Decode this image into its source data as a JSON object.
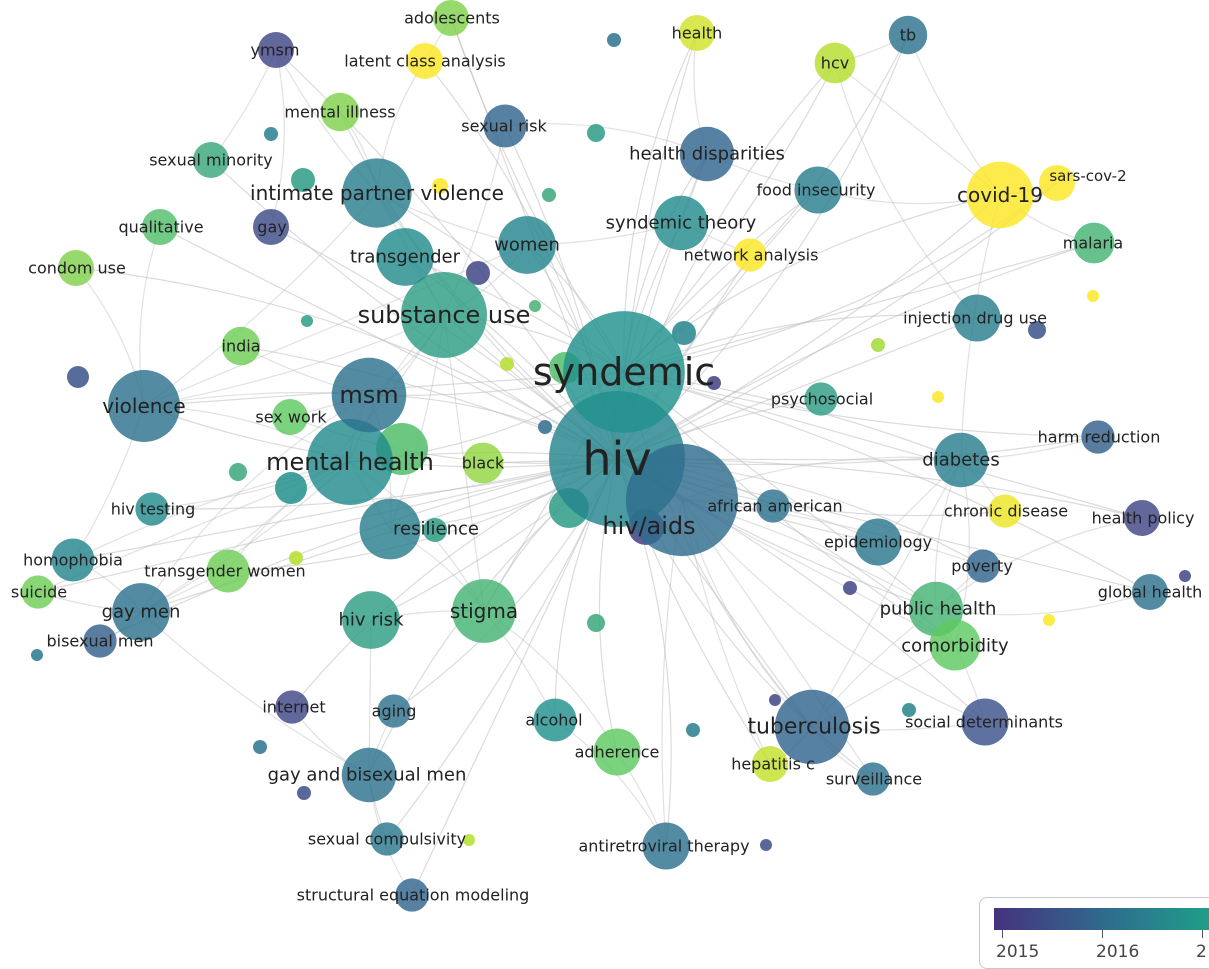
{
  "network": {
    "nodes": [
      {
        "id": "hiv",
        "label": "hiv",
        "year": 2016.3,
        "weight": 100
      },
      {
        "id": "syndemic",
        "label": "syndemic",
        "year": 2016.5,
        "weight": 80
      },
      {
        "id": "hiv/aids",
        "label": "hiv/aids",
        "year": 2015.9,
        "weight": 68
      },
      {
        "id": "substance use",
        "label": "substance use",
        "year": 2016.6,
        "weight": 40
      },
      {
        "id": "mental health",
        "label": "mental health",
        "year": 2016.4,
        "weight": 40
      },
      {
        "id": "msm",
        "label": "msm",
        "year": 2016.0,
        "weight": 30
      },
      {
        "id": "violence",
        "label": "violence",
        "year": 2016.0,
        "weight": 28
      },
      {
        "id": "intimate partner violence",
        "label": "intimate partner violence",
        "year": 2016.2,
        "weight": 26
      },
      {
        "id": "tuberculosis",
        "label": "tuberculosis",
        "year": 2015.8,
        "weight": 30
      },
      {
        "id": "covid-19",
        "label": "covid-19",
        "year": 2018.0,
        "weight": 24
      },
      {
        "id": "stigma",
        "label": "stigma",
        "year": 2016.8,
        "weight": 22
      },
      {
        "id": "resilience",
        "label": "resilience",
        "year": 2016.2,
        "weight": 20
      },
      {
        "id": "hiv risk",
        "label": "hiv risk",
        "year": 2016.6,
        "weight": 18
      },
      {
        "id": "gay men",
        "label": "gay men",
        "year": 2016.0,
        "weight": 18
      },
      {
        "id": "transgender",
        "label": "transgender",
        "year": 2016.4,
        "weight": 18
      },
      {
        "id": "women",
        "label": "women",
        "year": 2016.3,
        "weight": 18
      },
      {
        "id": "syndemic theory",
        "label": "syndemic theory",
        "year": 2016.4,
        "weight": 16
      },
      {
        "id": "health disparities",
        "label": "health disparities",
        "year": 2015.8,
        "weight": 16
      },
      {
        "id": "diabetes",
        "label": "diabetes",
        "year": 2016.2,
        "weight": 16
      },
      {
        "id": "public health",
        "label": "public health",
        "year": 2016.8,
        "weight": 16
      },
      {
        "id": "gay and bisexual men",
        "label": "gay and bisexual men",
        "year": 2016.0,
        "weight": 16
      },
      {
        "id": "comorbidity",
        "label": "comorbidity",
        "year": 2017.0,
        "weight": 14
      },
      {
        "id": "food insecurity",
        "label": "food insecurity",
        "year": 2016.2,
        "weight": 12
      },
      {
        "id": "injection drug use",
        "label": "injection drug use",
        "year": 2016.2,
        "weight": 12
      },
      {
        "id": "epidemiology",
        "label": "epidemiology",
        "year": 2016.1,
        "weight": 12
      },
      {
        "id": "adherence",
        "label": "adherence",
        "year": 2017.0,
        "weight": 12
      },
      {
        "id": "antiretroviral therapy",
        "label": "antiretroviral therapy",
        "year": 2016.0,
        "weight": 12
      },
      {
        "id": "social determinants",
        "label": "social determinants",
        "year": 2015.5,
        "weight": 12
      },
      {
        "id": "homophobia",
        "label": "homophobia",
        "year": 2016.3,
        "weight": 10
      },
      {
        "id": "sexual risk",
        "label": "sexual risk",
        "year": 2015.8,
        "weight": 10
      },
      {
        "id": "alcohol",
        "label": "alcohol",
        "year": 2016.5,
        "weight": 10
      },
      {
        "id": "transgender women",
        "label": "transgender women",
        "year": 2017.1,
        "weight": 10
      },
      {
        "id": "malaria",
        "label": "malaria",
        "year": 2016.8,
        "weight": 9
      },
      {
        "id": "black",
        "label": "black",
        "year": 2017.3,
        "weight": 9
      },
      {
        "id": "india",
        "label": "india",
        "year": 2017.1,
        "weight": 8
      },
      {
        "id": "tb",
        "label": "tb",
        "year": 2016.0,
        "weight": 8
      },
      {
        "id": "hcv",
        "label": "hcv",
        "year": 2017.5,
        "weight": 9
      },
      {
        "id": "health",
        "label": "health",
        "year": 2017.7,
        "weight": 7
      },
      {
        "id": "adolescents",
        "label": "adolescents",
        "year": 2017.2,
        "weight": 7
      },
      {
        "id": "ymsm",
        "label": "ymsm",
        "year": 2015.3,
        "weight": 7
      },
      {
        "id": "latent class analysis",
        "label": "latent class analysis",
        "year": 2018.0,
        "weight": 7
      },
      {
        "id": "mental illness",
        "label": "mental illness",
        "year": 2017.2,
        "weight": 8
      },
      {
        "id": "sexual minority",
        "label": "sexual minority",
        "year": 2016.7,
        "weight": 7
      },
      {
        "id": "qualitative",
        "label": "qualitative",
        "year": 2016.9,
        "weight": 7
      },
      {
        "id": "gay",
        "label": "gay",
        "year": 2015.4,
        "weight": 7
      },
      {
        "id": "condom use",
        "label": "condom use",
        "year": 2017.2,
        "weight": 7
      },
      {
        "id": "sex work",
        "label": "sex work",
        "year": 2017.0,
        "weight": 7
      },
      {
        "id": "hiv testing",
        "label": "hiv testing",
        "year": 2016.4,
        "weight": 6
      },
      {
        "id": "suicide",
        "label": "suicide",
        "year": 2017.1,
        "weight": 6
      },
      {
        "id": "bisexual men",
        "label": "bisexual men",
        "year": 2015.7,
        "weight": 6
      },
      {
        "id": "internet",
        "label": "internet",
        "year": 2015.3,
        "weight": 6
      },
      {
        "id": "aging",
        "label": "aging",
        "year": 2016.0,
        "weight": 6
      },
      {
        "id": "sexual compulsivity",
        "label": "sexual compulsivity",
        "year": 2016.1,
        "weight": 6
      },
      {
        "id": "structural equation modeling",
        "label": "structural equation modeling",
        "year": 2015.8,
        "weight": 6
      },
      {
        "id": "hepatitis c",
        "label": "hepatitis c",
        "year": 2017.6,
        "weight": 7
      },
      {
        "id": "surveillance",
        "label": "surveillance",
        "year": 2016.0,
        "weight": 6
      },
      {
        "id": "african american",
        "label": "african american",
        "year": 2016.0,
        "weight": 6
      },
      {
        "id": "psychosocial",
        "label": "psychosocial",
        "year": 2016.6,
        "weight": 6
      },
      {
        "id": "network analysis",
        "label": "network analysis",
        "year": 2018.0,
        "weight": 6
      },
      {
        "id": "harm reduction",
        "label": "harm reduction",
        "year": 2015.7,
        "weight": 6
      },
      {
        "id": "chronic disease",
        "label": "chronic disease",
        "year": 2017.9,
        "weight": 6
      },
      {
        "id": "poverty",
        "label": "poverty",
        "year": 2015.8,
        "weight": 6
      },
      {
        "id": "health policy",
        "label": "health policy",
        "year": 2015.3,
        "weight": 7
      },
      {
        "id": "global health",
        "label": "global health",
        "year": 2016.0,
        "weight": 7
      },
      {
        "id": "sars-cov-2",
        "label": "sars-cov-2",
        "year": 2018.0,
        "weight": 7
      }
    ],
    "edges": [
      [
        "hiv",
        "syndemic"
      ],
      [
        "hiv",
        "hiv/aids"
      ],
      [
        "hiv",
        "substance use"
      ],
      [
        "hiv",
        "mental health"
      ],
      [
        "hiv",
        "msm"
      ],
      [
        "hiv",
        "violence"
      ],
      [
        "hiv",
        "intimate partner violence"
      ],
      [
        "hiv",
        "tuberculosis"
      ],
      [
        "hiv",
        "covid-19"
      ],
      [
        "hiv",
        "stigma"
      ],
      [
        "hiv",
        "resilience"
      ],
      [
        "hiv",
        "hiv risk"
      ],
      [
        "hiv",
        "gay men"
      ],
      [
        "hiv",
        "transgender"
      ],
      [
        "hiv",
        "women"
      ],
      [
        "hiv",
        "syndemic theory"
      ],
      [
        "hiv",
        "health disparities"
      ],
      [
        "hiv",
        "diabetes"
      ],
      [
        "hiv",
        "public health"
      ],
      [
        "hiv",
        "gay and bisexual men"
      ],
      [
        "hiv",
        "comorbidity"
      ],
      [
        "hiv",
        "food insecurity"
      ],
      [
        "hiv",
        "injection drug use"
      ],
      [
        "hiv",
        "epidemiology"
      ],
      [
        "hiv",
        "adherence"
      ],
      [
        "hiv",
        "antiretroviral therapy"
      ],
      [
        "hiv",
        "social determinants"
      ],
      [
        "hiv",
        "homophobia"
      ],
      [
        "hiv",
        "sexual risk"
      ],
      [
        "hiv",
        "alcohol"
      ],
      [
        "hiv",
        "transgender women"
      ],
      [
        "hiv",
        "malaria"
      ],
      [
        "hiv",
        "black"
      ],
      [
        "hiv",
        "india"
      ],
      [
        "hiv",
        "tb"
      ],
      [
        "hiv",
        "hcv"
      ],
      [
        "hiv",
        "health"
      ],
      [
        "hiv",
        "adolescents"
      ],
      [
        "hiv",
        "ymsm"
      ],
      [
        "hiv",
        "latent class analysis"
      ],
      [
        "hiv",
        "mental illness"
      ],
      [
        "hiv",
        "sexual minority"
      ],
      [
        "hiv",
        "qualitative"
      ],
      [
        "hiv",
        "gay"
      ],
      [
        "hiv",
        "condom use"
      ],
      [
        "hiv",
        "sex work"
      ],
      [
        "hiv",
        "hiv testing"
      ],
      [
        "hiv",
        "suicide"
      ],
      [
        "hiv",
        "bisexual men"
      ],
      [
        "hiv",
        "internet"
      ],
      [
        "hiv",
        "aging"
      ],
      [
        "hiv",
        "sexual compulsivity"
      ],
      [
        "hiv",
        "structural equation modeling"
      ],
      [
        "hiv",
        "hepatitis c"
      ],
      [
        "hiv",
        "surveillance"
      ],
      [
        "hiv",
        "african american"
      ],
      [
        "hiv",
        "psychosocial"
      ],
      [
        "hiv",
        "network analysis"
      ],
      [
        "hiv",
        "harm reduction"
      ],
      [
        "hiv",
        "chronic disease"
      ],
      [
        "hiv",
        "poverty"
      ],
      [
        "hiv",
        "health policy"
      ],
      [
        "hiv",
        "global health"
      ],
      [
        "hiv",
        "sars-cov-2"
      ],
      [
        "syndemic",
        "substance use"
      ],
      [
        "syndemic",
        "mental health"
      ],
      [
        "syndemic",
        "msm"
      ],
      [
        "syndemic",
        "violence"
      ],
      [
        "syndemic",
        "intimate partner violence"
      ],
      [
        "syndemic",
        "tuberculosis"
      ],
      [
        "syndemic",
        "covid-19"
      ],
      [
        "syndemic",
        "diabetes"
      ],
      [
        "syndemic",
        "stigma"
      ],
      [
        "syndemic",
        "transgender"
      ],
      [
        "syndemic",
        "women"
      ],
      [
        "syndemic",
        "health disparities"
      ],
      [
        "syndemic",
        "food insecurity"
      ],
      [
        "syndemic",
        "malaria"
      ],
      [
        "syndemic",
        "hcv"
      ],
      [
        "syndemic",
        "tb"
      ],
      [
        "syndemic",
        "health"
      ],
      [
        "syndemic",
        "adolescents"
      ],
      [
        "syndemic",
        "public health"
      ],
      [
        "syndemic",
        "comorbidity"
      ],
      [
        "syndemic",
        "sars-cov-2"
      ],
      [
        "syndemic",
        "injection drug use"
      ],
      [
        "syndemic",
        "global health"
      ],
      [
        "syndemic",
        "health policy"
      ],
      [
        "syndemic",
        "harm reduction"
      ],
      [
        "hiv/aids",
        "tuberculosis"
      ],
      [
        "hiv/aids",
        "diabetes"
      ],
      [
        "hiv/aids",
        "public health"
      ],
      [
        "hiv/aids",
        "comorbidity"
      ],
      [
        "hiv/aids",
        "antiretroviral therapy"
      ],
      [
        "hiv/aids",
        "social determinants"
      ],
      [
        "hiv/aids",
        "epidemiology"
      ],
      [
        "hiv/aids",
        "poverty"
      ],
      [
        "hiv/aids",
        "surveillance"
      ],
      [
        "hiv/aids",
        "hepatitis c"
      ],
      [
        "substance use",
        "mental health"
      ],
      [
        "substance use",
        "msm"
      ],
      [
        "substance use",
        "violence"
      ],
      [
        "substance use",
        "intimate partner violence"
      ],
      [
        "substance use",
        "transgender"
      ],
      [
        "substance use",
        "women"
      ],
      [
        "substance use",
        "gay men"
      ],
      [
        "substance use",
        "resilience"
      ],
      [
        "substance use",
        "stigma"
      ],
      [
        "substance use",
        "sexual risk"
      ],
      [
        "mental health",
        "violence"
      ],
      [
        "mental health",
        "msm"
      ],
      [
        "mental health",
        "gay men"
      ],
      [
        "mental health",
        "resilience"
      ],
      [
        "mental health",
        "homophobia"
      ],
      [
        "mental health",
        "transgender women"
      ],
      [
        "mental health",
        "stigma"
      ],
      [
        "mental health",
        "hiv testing"
      ],
      [
        "mental health",
        "suicide"
      ],
      [
        "msm",
        "violence"
      ],
      [
        "msm",
        "gay men"
      ],
      [
        "msm",
        "resilience"
      ],
      [
        "msm",
        "india"
      ],
      [
        "msm",
        "sex work"
      ],
      [
        "violence",
        "intimate partner violence"
      ],
      [
        "violence",
        "condom use"
      ],
      [
        "violence",
        "qualitative"
      ],
      [
        "violence",
        "homophobia"
      ],
      [
        "violence",
        "women"
      ],
      [
        "intimate partner violence",
        "women"
      ],
      [
        "intimate partner violence",
        "mental illness"
      ],
      [
        "intimate partner violence",
        "latent class analysis"
      ],
      [
        "intimate partner violence",
        "ymsm"
      ],
      [
        "tuberculosis",
        "diabetes"
      ],
      [
        "tuberculosis",
        "social determinants"
      ],
      [
        "tuberculosis",
        "surveillance"
      ],
      [
        "tuberculosis",
        "hepatitis c"
      ],
      [
        "tuberculosis",
        "public health"
      ],
      [
        "tuberculosis",
        "comorbidity"
      ],
      [
        "covid-19",
        "sars-cov-2"
      ],
      [
        "covid-19",
        "malaria"
      ],
      [
        "covid-19",
        "food insecurity"
      ],
      [
        "covid-19",
        "tb"
      ],
      [
        "covid-19",
        "hcv"
      ],
      [
        "covid-19",
        "diabetes"
      ],
      [
        "diabetes",
        "public health"
      ],
      [
        "diabetes",
        "comorbidity"
      ],
      [
        "diabetes",
        "chronic disease"
      ],
      [
        "diabetes",
        "epidemiology"
      ],
      [
        "diabetes",
        "harm reduction"
      ],
      [
        "public health",
        "global health"
      ],
      [
        "public health",
        "health policy"
      ],
      [
        "public health",
        "social determinants"
      ],
      [
        "public health",
        "poverty"
      ],
      [
        "gay men",
        "gay and bisexual men"
      ],
      [
        "gay men",
        "homophobia"
      ],
      [
        "gay men",
        "bisexual men"
      ],
      [
        "gay men",
        "suicide"
      ],
      [
        "gay men",
        "transgender women"
      ],
      [
        "gay and bisexual men",
        "sexual compulsivity"
      ],
      [
        "gay and bisexual men",
        "structural equation modeling"
      ],
      [
        "gay and bisexual men",
        "internet"
      ],
      [
        "gay and bisexual men",
        "aging"
      ],
      [
        "gay and bisexual men",
        "hiv risk"
      ],
      [
        "stigma",
        "hiv risk"
      ],
      [
        "stigma",
        "resilience"
      ],
      [
        "stigma",
        "adherence"
      ],
      [
        "stigma",
        "alcohol"
      ],
      [
        "health disparities",
        "syndemic theory"
      ],
      [
        "health disparities",
        "food insecurity"
      ],
      [
        "health disparities",
        "sexual risk"
      ],
      [
        "health disparities",
        "health"
      ],
      [
        "syndemic theory",
        "women"
      ],
      [
        "syndemic theory",
        "network analysis"
      ],
      [
        "antiretroviral therapy",
        "adherence"
      ],
      [
        "antiretroviral therapy",
        "alcohol"
      ],
      [
        "ymsm",
        "gay"
      ],
      [
        "ymsm",
        "sexual minority"
      ],
      [
        "adolescents",
        "latent class analysis"
      ],
      [
        "hcv",
        "tb"
      ],
      [
        "hcv",
        "injection drug use"
      ]
    ]
  },
  "legend": {
    "ticks": [
      {
        "label": "2015",
        "year": 2015
      },
      {
        "label": "2016",
        "year": 2016
      },
      {
        "label": "2",
        "year": 2017
      }
    ]
  }
}
